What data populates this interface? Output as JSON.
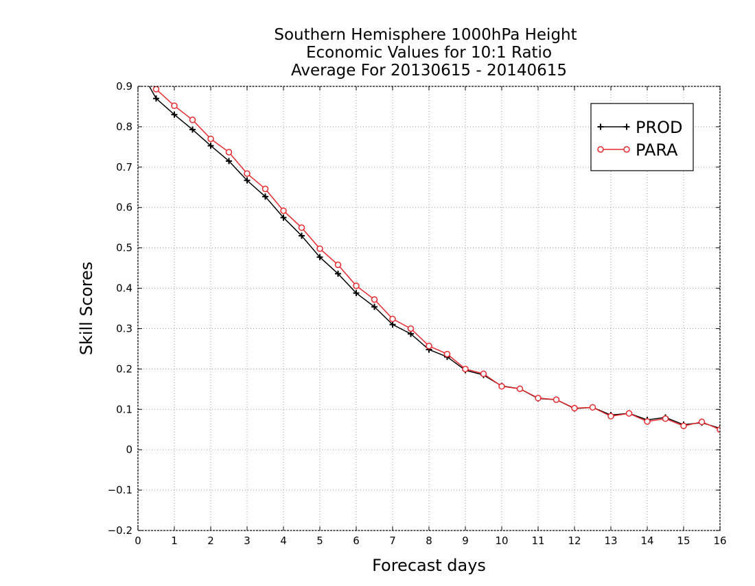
{
  "chart_data": {
    "type": "line",
    "title": [
      "Southern Hemisphere 1000hPa Height",
      "Economic Values for 10:1 Ratio",
      "Average For 20130615 - 20140615"
    ],
    "xlabel": "Forecast days",
    "ylabel": "Skill Scores",
    "xlim": [
      0,
      16
    ],
    "ylim": [
      -0.2,
      0.9
    ],
    "x_ticks": [
      0,
      1,
      2,
      3,
      4,
      5,
      6,
      7,
      8,
      9,
      10,
      11,
      12,
      13,
      14,
      15,
      16
    ],
    "y_ticks": [
      -0.2,
      -0.1,
      0,
      0.1,
      0.2,
      0.3,
      0.4,
      0.5,
      0.6,
      0.7,
      0.8,
      0.9
    ],
    "x_tick_labels": [
      "0",
      "1",
      "2",
      "3",
      "4",
      "5",
      "6",
      "7",
      "8",
      "9",
      "10",
      "11",
      "12",
      "13",
      "14",
      "15",
      "16"
    ],
    "y_tick_labels": [
      "−0.2",
      "−0.1",
      "0",
      "0.1",
      "0.2",
      "0.3",
      "0.4",
      "0.5",
      "0.6",
      "0.7",
      "0.8",
      "0.9"
    ],
    "grid": true,
    "legend_position": "top-right",
    "x": [
      0,
      0.5,
      1,
      1.5,
      2,
      2.5,
      3,
      3.5,
      4,
      4.5,
      5,
      5.5,
      6,
      6.5,
      7,
      7.5,
      8,
      8.5,
      9,
      9.5,
      10,
      10.5,
      11,
      11.5,
      12,
      12.5,
      13,
      13.5,
      14,
      14.5,
      15,
      15.5,
      16
    ],
    "series": [
      {
        "name": "PROD",
        "color": "#000000",
        "marker": "plus",
        "values": [
          0.95,
          0.87,
          0.83,
          0.793,
          0.753,
          0.715,
          0.667,
          0.627,
          0.575,
          0.53,
          0.477,
          0.436,
          0.388,
          0.354,
          0.31,
          0.287,
          0.248,
          0.23,
          0.197,
          0.185,
          0.158,
          0.151,
          0.127,
          0.124,
          0.102,
          0.105,
          0.086,
          0.09,
          0.074,
          0.08,
          0.062,
          0.067,
          0.053
        ]
      },
      {
        "name": "PARA",
        "color": "#e8282c",
        "marker": "circle",
        "values": [
          0.97,
          0.893,
          0.852,
          0.817,
          0.77,
          0.737,
          0.684,
          0.646,
          0.592,
          0.55,
          0.498,
          0.458,
          0.406,
          0.372,
          0.324,
          0.3,
          0.257,
          0.237,
          0.2,
          0.188,
          0.157,
          0.151,
          0.128,
          0.124,
          0.103,
          0.105,
          0.083,
          0.09,
          0.07,
          0.077,
          0.059,
          0.069,
          0.05
        ]
      }
    ]
  }
}
